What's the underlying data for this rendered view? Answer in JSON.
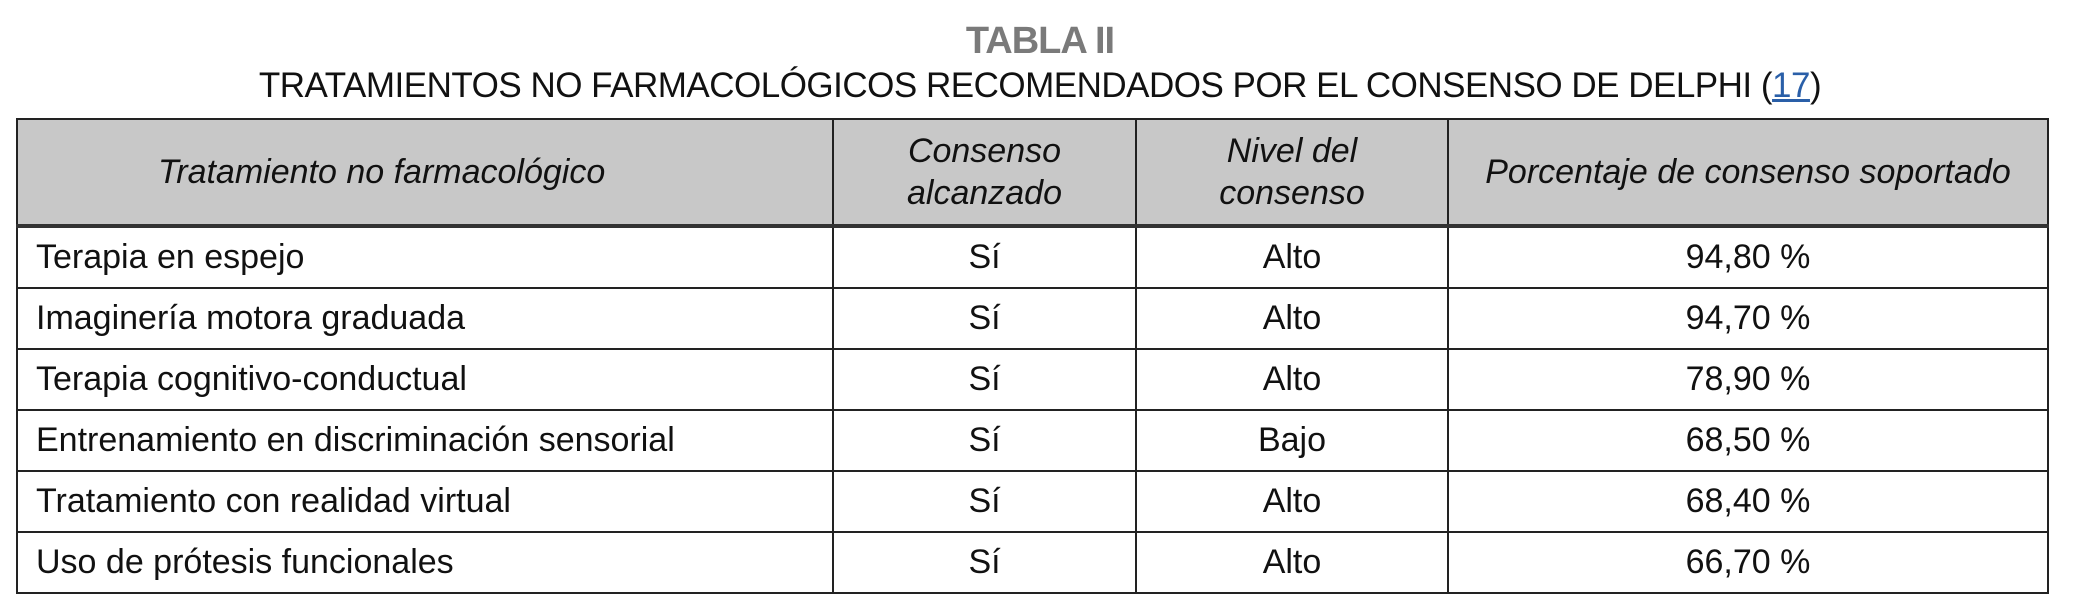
{
  "title": "TABLA II",
  "subtitle": {
    "text": "TRATAMIENTOS NO FARMACOLÓGICOS RECOMENDADOS POR EL CONSENSO DE DELPHI (",
    "ref": "17",
    "close": ")"
  },
  "colors": {
    "title": "#7a7a7a",
    "header_bg": "#c8c8c8",
    "link": "#2a5fa8"
  },
  "table": {
    "headers": [
      "Tratamiento no farmacológico",
      "Consenso alcanzado",
      "Nivel del consenso",
      "Porcentaje de consenso soportado"
    ],
    "rows": [
      [
        "Terapia en espejo",
        "Sí",
        "Alto",
        "94,80 %"
      ],
      [
        "Imaginería motora graduada",
        "Sí",
        "Alto",
        "94,70 %"
      ],
      [
        "Terapia cognitivo-conductual",
        "Sí",
        "Alto",
        "78,90 %"
      ],
      [
        "Entrenamiento en discriminación sensorial",
        "Sí",
        "Bajo",
        "68,50 %"
      ],
      [
        "Tratamiento con realidad virtual",
        "Sí",
        "Alto",
        "68,40 %"
      ],
      [
        "Uso de prótesis funcionales",
        "Sí",
        "Alto",
        "66,70 %"
      ]
    ]
  }
}
